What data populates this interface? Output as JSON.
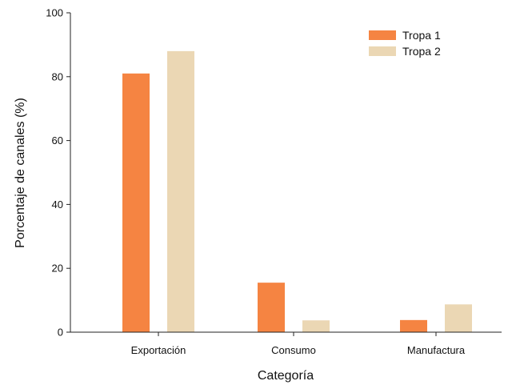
{
  "chart_data": {
    "type": "bar",
    "categories": [
      "Exportación",
      "Consumo",
      "Manufactura"
    ],
    "series": [
      {
        "name": "Tropa 1",
        "values": [
          81,
          15.5,
          3.8
        ],
        "color": "#F58442"
      },
      {
        "name": "Tropa 2",
        "values": [
          88,
          3.7,
          8.7
        ],
        "color": "#EBD7B4"
      }
    ],
    "xlabel": "Categoría",
    "ylabel": "Porcentaje de canales (%)",
    "ylim": [
      0,
      100
    ],
    "yticks": [
      0,
      20,
      40,
      60,
      80,
      100
    ],
    "grid": false,
    "legend_position": "top-right"
  }
}
